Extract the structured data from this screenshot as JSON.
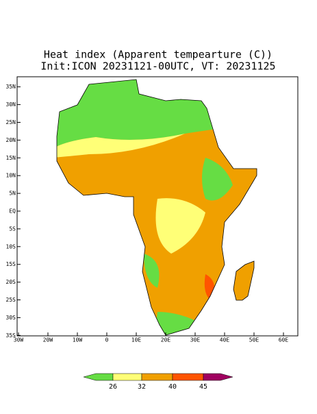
{
  "title": "Heat index (Apparent tempearture (C))",
  "subtitle": "Init:ICON 20231121-00UTC, VT: 20231125",
  "lat_ticks": [
    {
      "value": 35,
      "label": "35N"
    },
    {
      "value": 30,
      "label": "30N"
    },
    {
      "value": 25,
      "label": "25N"
    },
    {
      "value": 20,
      "label": "20N"
    },
    {
      "value": 15,
      "label": "15N"
    },
    {
      "value": 10,
      "label": "10N"
    },
    {
      "value": 5,
      "label": "5N"
    },
    {
      "value": 0,
      "label": "EQ"
    },
    {
      "value": -5,
      "label": "5S"
    },
    {
      "value": -10,
      "label": "10S"
    },
    {
      "value": -15,
      "label": "15S"
    },
    {
      "value": -20,
      "label": "20S"
    },
    {
      "value": -25,
      "label": "25S"
    },
    {
      "value": -30,
      "label": "30S"
    },
    {
      "value": -35,
      "label": "35S"
    }
  ],
  "lon_ticks": [
    {
      "value": -30,
      "label": "30W"
    },
    {
      "value": -20,
      "label": "20W"
    },
    {
      "value": -10,
      "label": "10W"
    },
    {
      "value": 0,
      "label": "0"
    },
    {
      "value": 10,
      "label": "10E"
    },
    {
      "value": 20,
      "label": "20E"
    },
    {
      "value": 30,
      "label": "30E"
    },
    {
      "value": 40,
      "label": "40E"
    },
    {
      "value": 50,
      "label": "50E"
    },
    {
      "value": 60,
      "label": "60E"
    }
  ],
  "colorbar": {
    "levels": [
      26,
      32,
      40,
      45
    ],
    "colors": [
      "#66dd44",
      "#ffff77",
      "#f0a000",
      "#ff5500",
      "#a00060"
    ]
  }
}
